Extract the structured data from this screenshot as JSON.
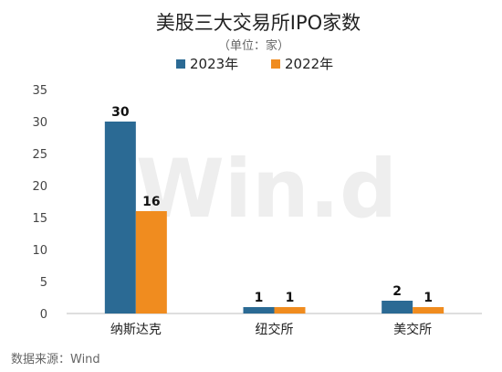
{
  "chart_data": {
    "type": "bar",
    "title": "美股三大交易所IPO家数",
    "subtitle": "（单位：家）",
    "categories": [
      "纳斯达克",
      "纽交所",
      "美交所"
    ],
    "series": [
      {
        "name": "2023年",
        "color": "#2b6a94",
        "values": [
          30,
          1,
          2
        ]
      },
      {
        "name": "2022年",
        "color": "#f08c1f",
        "values": [
          16,
          1,
          1
        ]
      }
    ],
    "ylim": [
      0,
      35
    ],
    "yticks": [
      0,
      5,
      10,
      15,
      20,
      25,
      30,
      35
    ],
    "grid": false,
    "legend_position": "top-center",
    "xlabel": "",
    "ylabel": ""
  },
  "watermark": "Win.d",
  "source": "数据来源：Wind"
}
